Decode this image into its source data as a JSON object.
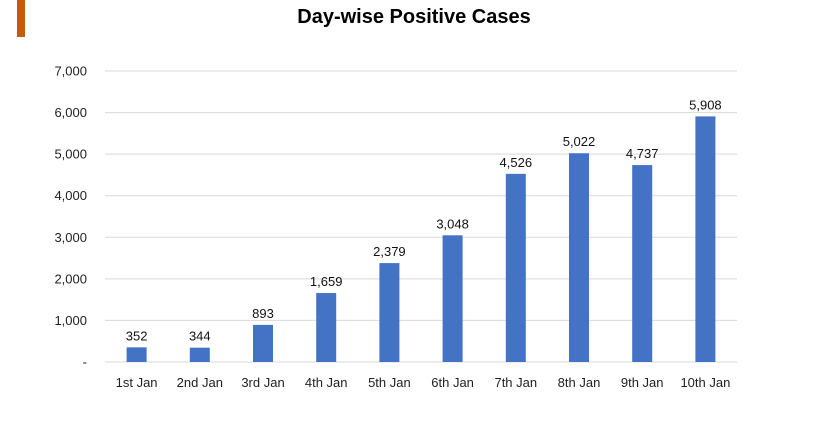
{
  "chart_data": {
    "type": "bar",
    "title": "Day-wise Positive Cases",
    "xlabel": "",
    "ylabel": "",
    "categories": [
      "1st Jan",
      "2nd Jan",
      "3rd Jan",
      "4th Jan",
      "5th Jan",
      "6th Jan",
      "7th Jan",
      "8th Jan",
      "9th Jan",
      "10th Jan"
    ],
    "values": [
      352,
      344,
      893,
      1659,
      2379,
      3048,
      4526,
      5022,
      4737,
      5908
    ],
    "data_labels": [
      "352",
      "344",
      "893",
      "1,659",
      "2,379",
      "3,048",
      "4,526",
      "5,022",
      "4,737",
      "5,908"
    ],
    "ylim": [
      0,
      7000
    ],
    "yticks": [
      0,
      1000,
      2000,
      3000,
      4000,
      5000,
      6000,
      7000
    ],
    "ytick_labels": [
      "-",
      "1,000",
      "2,000",
      "3,000",
      "4,000",
      "5,000",
      "6,000",
      "7,000"
    ],
    "grid": true,
    "legend": "none",
    "bar_color": "#4472c4",
    "grid_color": "#d9d9d9"
  },
  "decor": {
    "accent_color": "#c55a11"
  }
}
